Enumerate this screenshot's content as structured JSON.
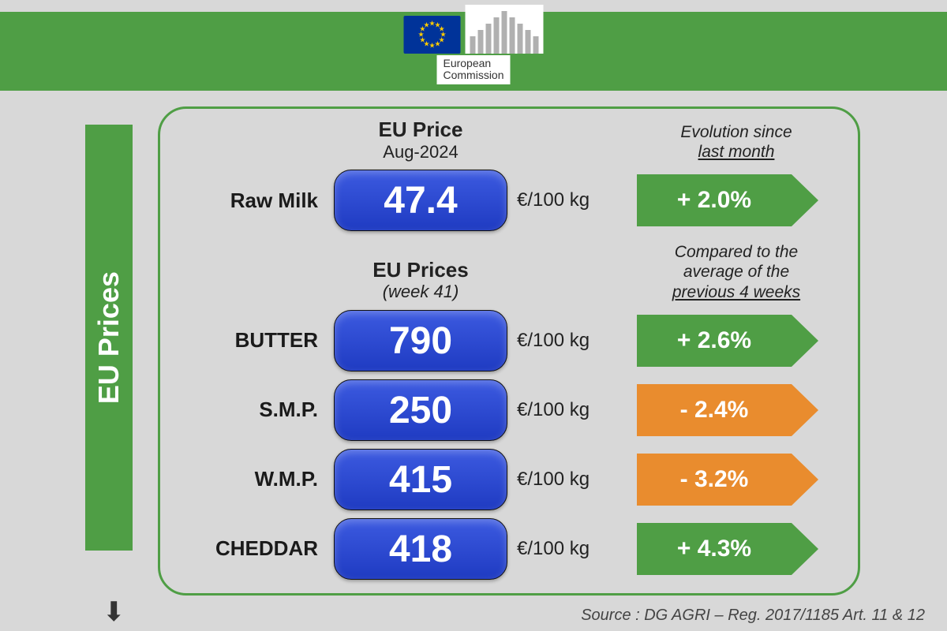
{
  "colors": {
    "green": "#4f9e45",
    "orange": "#e98c2e",
    "blue_pill": "#2a44cc",
    "background": "#d8d8d8"
  },
  "logo": {
    "org_line1": "European",
    "org_line2": "Commission"
  },
  "sidebar": {
    "title": "EU Prices"
  },
  "section1": {
    "title": "EU Price",
    "subtitle": "Aug-2024",
    "evo_line1": "Evolution since",
    "evo_line2": "last month"
  },
  "section2": {
    "title": "EU Prices",
    "subtitle": "(week 41)",
    "cmp_line1": "Compared to the",
    "cmp_line2": "average of the",
    "cmp_line3": "previous 4 weeks"
  },
  "unit": "€/100 kg",
  "rows": {
    "raw_milk": {
      "label": "Raw Milk",
      "price": "47.4",
      "change": "+ 2.0%",
      "dir": "up"
    },
    "butter": {
      "label": "BUTTER",
      "price": "790",
      "change": "+ 2.6%",
      "dir": "up"
    },
    "smp": {
      "label": "S.M.P.",
      "price": "250",
      "change": "- 2.4%",
      "dir": "down"
    },
    "wmp": {
      "label": "W.M.P.",
      "price": "415",
      "change": "- 3.2%",
      "dir": "down"
    },
    "cheddar": {
      "label": "CHEDDAR",
      "price": "418",
      "change": "+ 4.3%",
      "dir": "up"
    }
  },
  "source": "Source : DG AGRI – Reg. 2017/1185 Art. 11 & 12"
}
